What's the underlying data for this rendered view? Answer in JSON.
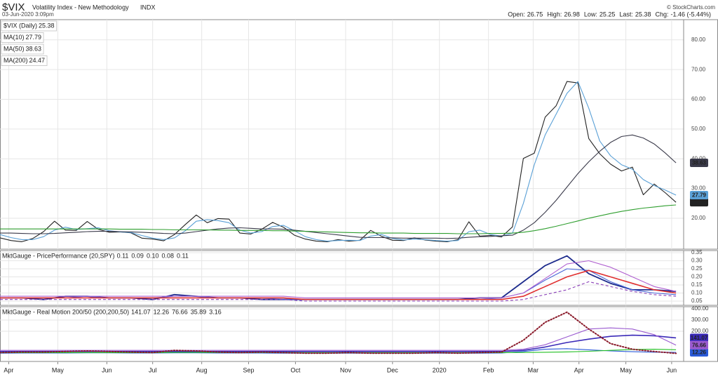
{
  "header": {
    "symbol": "$VIX",
    "name": "Volatility Index - New Methodology",
    "exchange": "INDX",
    "copyright": "© StockCharts.com",
    "date": "03-Jun-2020 3:09pm",
    "quote": [
      {
        "label": "Open:",
        "value": "26.75"
      },
      {
        "label": "High:",
        "value": "26.98"
      },
      {
        "label": "Low:",
        "value": "25.25"
      },
      {
        "label": "Last:",
        "value": "25.38"
      },
      {
        "label": "Chg:",
        "value": "-1.46 (-5.44%)"
      }
    ]
  },
  "chart_data": [
    {
      "type": "line",
      "grid": true,
      "xlim": [
        0,
        62.7
      ],
      "xticks": [
        {
          "value": 0.8,
          "label": "Apr"
        },
        {
          "value": 5.3,
          "label": "May"
        },
        {
          "value": 9.8,
          "label": "Jun"
        },
        {
          "value": 14.0,
          "label": "Jul"
        },
        {
          "value": 18.5,
          "label": "Aug"
        },
        {
          "value": 22.8,
          "label": "Sep"
        },
        {
          "value": 27.1,
          "label": "Oct"
        },
        {
          "value": 31.7,
          "label": "Nov"
        },
        {
          "value": 36.0,
          "label": "Dec"
        },
        {
          "value": 40.3,
          "label": "2020"
        },
        {
          "value": 44.8,
          "label": "Feb"
        },
        {
          "value": 48.9,
          "label": "Mar"
        },
        {
          "value": 53.1,
          "label": "Apr"
        },
        {
          "value": 57.4,
          "label": "May"
        },
        {
          "value": 61.6,
          "label": "Jun"
        }
      ],
      "ylim": [
        9.6,
        86.8
      ],
      "yticks": [
        {
          "value": 20,
          "label": "20.00"
        },
        {
          "value": 30,
          "label": "30.00"
        },
        {
          "value": 40,
          "label": "40.00"
        },
        {
          "value": 50,
          "label": "50.00"
        },
        {
          "value": 60,
          "label": "60.00"
        },
        {
          "value": 70,
          "label": "70.00"
        },
        {
          "value": 80,
          "label": "80.00"
        }
      ],
      "series": [
        {
          "name": "$VIX (Daily)",
          "color": "#222222",
          "tag": true,
          "values": [
            13.4,
            12.5,
            12.1,
            13.2,
            15.5,
            19.0,
            16.0,
            15.9,
            18.9,
            16.3,
            15.3,
            15.4,
            15.1,
            13.3,
            13.0,
            12.4,
            14.5,
            17.9,
            21.1,
            18.5,
            19.9,
            19.7,
            15.0,
            14.7,
            16.3,
            18.6,
            17.0,
            14.3,
            13.0,
            12.3,
            12.1,
            12.8,
            12.3,
            12.6,
            15.9,
            13.9,
            12.6,
            12.5,
            13.4,
            12.7,
            12.3,
            12.1,
            12.8,
            18.8,
            14.0,
            14.2,
            13.7,
            17.1,
            40.1,
            41.9,
            54.0,
            57.8,
            66.0,
            65.5,
            46.8,
            41.7,
            38.2,
            35.9,
            37.2,
            27.9,
            31.5,
            28.6,
            25.38
          ]
        },
        {
          "name": "MA(10)",
          "color": "#5aa0d6",
          "tag": true,
          "values": [
            14.5,
            13.5,
            12.8,
            12.8,
            13.8,
            16.0,
            17.0,
            16.2,
            16.5,
            16.8,
            15.8,
            15.4,
            15.2,
            14.2,
            13.3,
            12.8,
            13.4,
            15.8,
            19.0,
            19.5,
            19.2,
            18.5,
            16.0,
            15.0,
            15.5,
            17.2,
            17.6,
            15.8,
            13.8,
            12.8,
            12.3,
            12.5,
            12.6,
            12.5,
            14.0,
            14.5,
            13.2,
            12.7,
            13.0,
            12.8,
            12.5,
            12.3,
            12.5,
            15.5,
            16.0,
            14.5,
            14.0,
            15.0,
            25.0,
            38.0,
            48.0,
            55.0,
            62.0,
            66.0,
            57.0,
            46.0,
            41.0,
            38.0,
            36.5,
            33.0,
            31.0,
            29.5,
            27.79
          ]
        },
        {
          "name": "MA(50)",
          "color": "#3a3a4a",
          "tag": true,
          "values": [
            15.0,
            15.0,
            14.9,
            14.8,
            14.8,
            14.9,
            15.1,
            15.3,
            15.5,
            15.6,
            15.6,
            15.5,
            15.4,
            15.3,
            15.1,
            14.9,
            14.8,
            15.0,
            15.5,
            16.0,
            16.4,
            16.7,
            16.8,
            16.6,
            16.4,
            16.4,
            16.3,
            16.0,
            15.6,
            15.2,
            14.8,
            14.4,
            14.0,
            13.6,
            13.5,
            13.5,
            13.4,
            13.3,
            13.3,
            13.3,
            13.3,
            13.2,
            13.3,
            13.6,
            13.8,
            13.9,
            14.1,
            14.3,
            16.0,
            18.5,
            22.0,
            26.0,
            30.5,
            35.0,
            39.0,
            42.5,
            45.5,
            47.5,
            48.0,
            47.0,
            45.0,
            42.0,
            38.63
          ]
        },
        {
          "name": "MA(200)",
          "color": "#2e9e2e",
          "tag": false,
          "values": [
            16.4,
            16.4,
            16.4,
            16.4,
            16.4,
            16.4,
            16.4,
            16.4,
            16.4,
            16.4,
            16.4,
            16.3,
            16.3,
            16.3,
            16.2,
            16.2,
            16.1,
            16.1,
            16.1,
            16.1,
            16.0,
            16.0,
            15.9,
            15.9,
            15.9,
            15.8,
            15.8,
            15.7,
            15.6,
            15.5,
            15.4,
            15.3,
            15.2,
            15.1,
            15.1,
            15.0,
            15.0,
            15.0,
            14.9,
            14.9,
            14.9,
            14.9,
            14.8,
            14.8,
            14.8,
            14.9,
            14.9,
            15.0,
            15.3,
            15.8,
            16.5,
            17.3,
            18.2,
            19.1,
            20.0,
            20.8,
            21.6,
            22.3,
            22.9,
            23.4,
            23.8,
            24.2,
            24.47
          ]
        }
      ]
    },
    {
      "type": "line",
      "grid": true,
      "title": "MktGauge - PricePerformance (20,SPY)",
      "xlim": [
        0,
        62.7
      ],
      "x": [
        0,
        2,
        4,
        6,
        8,
        10,
        12,
        14,
        16,
        18,
        20,
        22,
        24,
        26,
        28,
        30,
        32,
        34,
        36,
        38,
        40,
        42,
        44,
        46,
        48,
        50,
        52,
        54,
        56,
        58,
        60,
        62
      ],
      "ylim": [
        0.024,
        0.363
      ],
      "yticks": [
        0.05,
        {
          "value": 0.1,
          "label": "0.10"
        },
        0.15,
        {
          "value": 0.2,
          "label": "0.20"
        },
        0.25,
        {
          "value": 0.3,
          "label": "0.30"
        },
        0.35
      ],
      "legend_labels": [
        "0.11",
        "0.09",
        "0.10",
        "0.08",
        "0.11"
      ],
      "series": [
        {
          "color": "#1c2a8c",
          "width": 1.8,
          "values": [
            0.07,
            0.07,
            0.06,
            0.08,
            0.08,
            0.07,
            0.07,
            0.06,
            0.09,
            0.08,
            0.07,
            0.07,
            0.06,
            0.06,
            0.06,
            0.06,
            0.06,
            0.06,
            0.06,
            0.06,
            0.06,
            0.06,
            0.07,
            0.07,
            0.17,
            0.27,
            0.33,
            0.22,
            0.16,
            0.12,
            0.12,
            0.11
          ]
        },
        {
          "color": "#4a66d8",
          "values": [
            0.07,
            0.07,
            0.07,
            0.07,
            0.08,
            0.07,
            0.07,
            0.07,
            0.08,
            0.08,
            0.07,
            0.07,
            0.07,
            0.06,
            0.06,
            0.06,
            0.06,
            0.06,
            0.06,
            0.06,
            0.06,
            0.06,
            0.06,
            0.07,
            0.1,
            0.18,
            0.25,
            0.24,
            0.17,
            0.12,
            0.1,
            0.09
          ]
        },
        {
          "color": "#e03030",
          "width": 1.6,
          "values": [
            0.07,
            0.07,
            0.07,
            0.07,
            0.07,
            0.07,
            0.07,
            0.07,
            0.07,
            0.07,
            0.07,
            0.07,
            0.07,
            0.07,
            0.06,
            0.06,
            0.06,
            0.06,
            0.06,
            0.06,
            0.06,
            0.06,
            0.06,
            0.06,
            0.08,
            0.14,
            0.2,
            0.24,
            0.2,
            0.16,
            0.12,
            0.1
          ]
        },
        {
          "color": "#8a3fb8",
          "style": "dashed",
          "values": [
            0.06,
            0.06,
            0.06,
            0.06,
            0.06,
            0.06,
            0.06,
            0.06,
            0.06,
            0.06,
            0.06,
            0.06,
            0.06,
            0.06,
            0.05,
            0.05,
            0.05,
            0.05,
            0.05,
            0.05,
            0.05,
            0.05,
            0.05,
            0.05,
            0.06,
            0.09,
            0.12,
            0.17,
            0.14,
            0.11,
            0.09,
            0.08
          ]
        },
        {
          "color": "#b060d0",
          "values": [
            0.08,
            0.08,
            0.08,
            0.08,
            0.08,
            0.08,
            0.08,
            0.08,
            0.08,
            0.08,
            0.08,
            0.08,
            0.08,
            0.08,
            0.07,
            0.07,
            0.07,
            0.07,
            0.07,
            0.07,
            0.07,
            0.07,
            0.07,
            0.07,
            0.1,
            0.19,
            0.28,
            0.3,
            0.26,
            0.2,
            0.14,
            0.11
          ]
        }
      ]
    },
    {
      "type": "line",
      "grid": true,
      "title": "MktGauge - Real Motion 200/50 (200,200,50)",
      "xlim": [
        0,
        62.7
      ],
      "x": [
        0,
        2,
        4,
        6,
        8,
        10,
        12,
        14,
        16,
        18,
        20,
        22,
        24,
        26,
        28,
        30,
        32,
        34,
        36,
        38,
        40,
        42,
        44,
        46,
        48,
        50,
        52,
        54,
        56,
        58,
        60,
        62
      ],
      "ylim": [
        -68.75,
        418.75
      ],
      "yticks": [
        {
          "value": 200,
          "label": "200.00"
        },
        {
          "value": 300,
          "label": "300.00"
        },
        {
          "value": 400,
          "label": "400.00"
        }
      ],
      "series": [
        {
          "color": "#3b2ab8",
          "width": 1.6,
          "tag": true,
          "values": [
            20,
            20,
            20,
            20,
            20,
            20,
            20,
            20,
            20,
            20,
            20,
            20,
            20,
            20,
            20,
            20,
            20,
            20,
            20,
            20,
            20,
            20,
            20,
            20,
            30,
            60,
            100,
            130,
            155,
            165,
            160,
            141.07
          ]
        },
        {
          "color": "#2a5ad8",
          "tag": true,
          "values": [
            5,
            6,
            6,
            7,
            8,
            8,
            7,
            6,
            8,
            8,
            7,
            6,
            6,
            5,
            5,
            5,
            5,
            5,
            5,
            5,
            5,
            5,
            5,
            6,
            20,
            40,
            45,
            35,
            25,
            18,
            14,
            12.26
          ]
        },
        {
          "color": "#9a5ad0",
          "tag": true,
          "values": [
            30,
            30,
            30,
            30,
            30,
            30,
            30,
            30,
            30,
            30,
            30,
            30,
            30,
            30,
            30,
            30,
            30,
            30,
            30,
            30,
            30,
            30,
            30,
            30,
            40,
            80,
            150,
            220,
            230,
            220,
            170,
            76.66
          ]
        },
        {
          "color": "#22c022",
          "values": [
            10,
            10,
            10,
            10,
            10,
            10,
            10,
            10,
            11,
            11,
            11,
            11,
            11,
            11,
            10,
            10,
            10,
            10,
            10,
            10,
            10,
            10,
            10,
            10,
            11,
            13,
            16,
            22,
            30,
            38,
            40,
            35.89
          ]
        },
        {
          "color": "#8a1a2a",
          "style": "dotted",
          "width": 2,
          "values": [
            10,
            15,
            15,
            20,
            25,
            20,
            15,
            10,
            30,
            25,
            15,
            10,
            15,
            10,
            5,
            5,
            10,
            5,
            5,
            5,
            10,
            5,
            10,
            15,
            120,
            280,
            370,
            220,
            90,
            40,
            20,
            3.16
          ]
        }
      ]
    }
  ]
}
